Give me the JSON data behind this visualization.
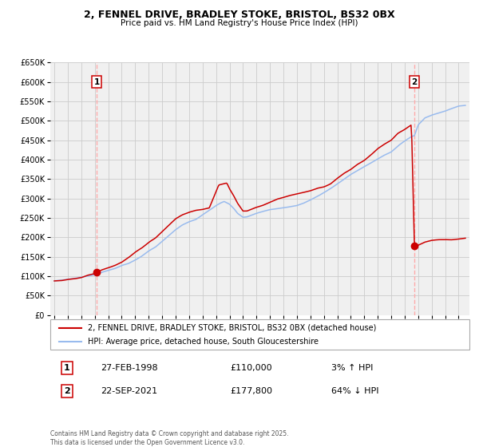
{
  "title": "2, FENNEL DRIVE, BRADLEY STOKE, BRISTOL, BS32 0BX",
  "subtitle": "Price paid vs. HM Land Registry's House Price Index (HPI)",
  "sale1_date": "27-FEB-1998",
  "sale1_price": 110000,
  "sale1_hpi_pct": "3% ↑ HPI",
  "sale2_date": "22-SEP-2021",
  "sale2_price": 177800,
  "sale2_hpi_pct": "64% ↓ HPI",
  "sale1_x": 1998.15,
  "sale2_x": 2021.72,
  "legend1": "2, FENNEL DRIVE, BRADLEY STOKE, BRISTOL, BS32 0BX (detached house)",
  "legend2": "HPI: Average price, detached house, South Gloucestershire",
  "footer": "Contains HM Land Registry data © Crown copyright and database right 2025.\nThis data is licensed under the Open Government Licence v3.0.",
  "line_color_red": "#cc0000",
  "line_color_blue": "#99bbee",
  "vline_color": "#ffaaaa",
  "marker_color": "#cc0000",
  "ylim_max": 650000,
  "xlim_start": 1994.7,
  "xlim_end": 2025.8,
  "bg_color": "#f0f0f0",
  "grid_color": "#cccccc",
  "fig_bg": "#ffffff"
}
